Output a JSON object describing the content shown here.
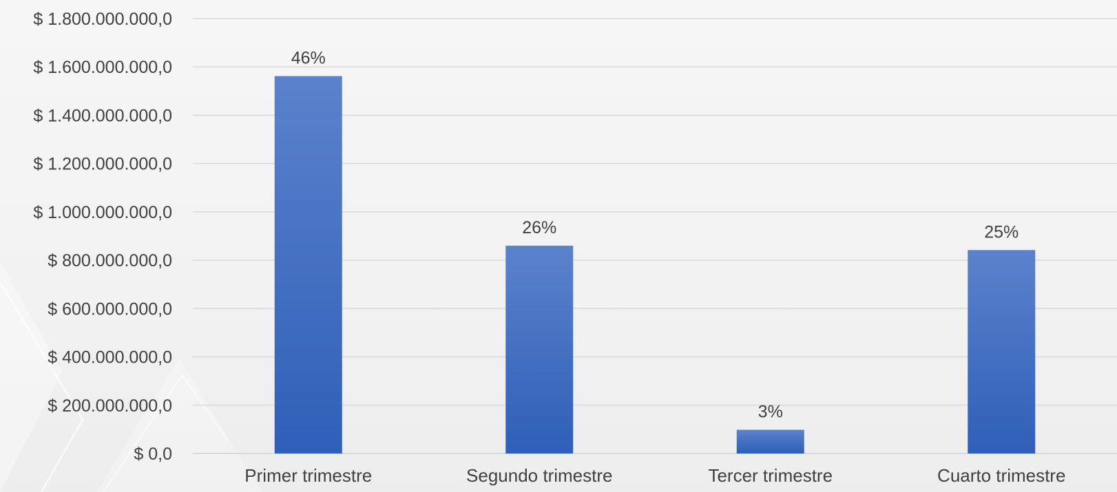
{
  "chart_data": {
    "type": "bar",
    "categories": [
      "Primer trimestre",
      "Segundo trimestre",
      "Tercer trimestre",
      "Cuarto trimestre"
    ],
    "values": [
      1562000000,
      860000000,
      98000000,
      842000000
    ],
    "data_labels": [
      "46%",
      "26%",
      "3%",
      "25%"
    ],
    "ylim": [
      0,
      1800000000
    ],
    "yticks": [
      0,
      200000000,
      400000000,
      600000000,
      800000000,
      1000000000,
      1200000000,
      1400000000,
      1600000000,
      1800000000
    ],
    "ytick_labels": [
      "$ 0,0",
      "$ 200.000.000,0",
      "$ 400.000.000,0",
      "$ 600.000.000,0",
      "$ 800.000.000,0",
      "$ 1.000.000.000,0",
      "$ 1.200.000.000,0",
      "$ 1.400.000.000,0",
      "$ 1.600.000.000,0",
      "$ 1.800.000.000,0"
    ],
    "grid": true,
    "legend": "none",
    "colors": {
      "bar": "#4472c4",
      "bar_top": "#5b82cc",
      "bar_bottom": "#2f5fb8",
      "grid": "#d9d9d9",
      "text": "#404040"
    }
  }
}
